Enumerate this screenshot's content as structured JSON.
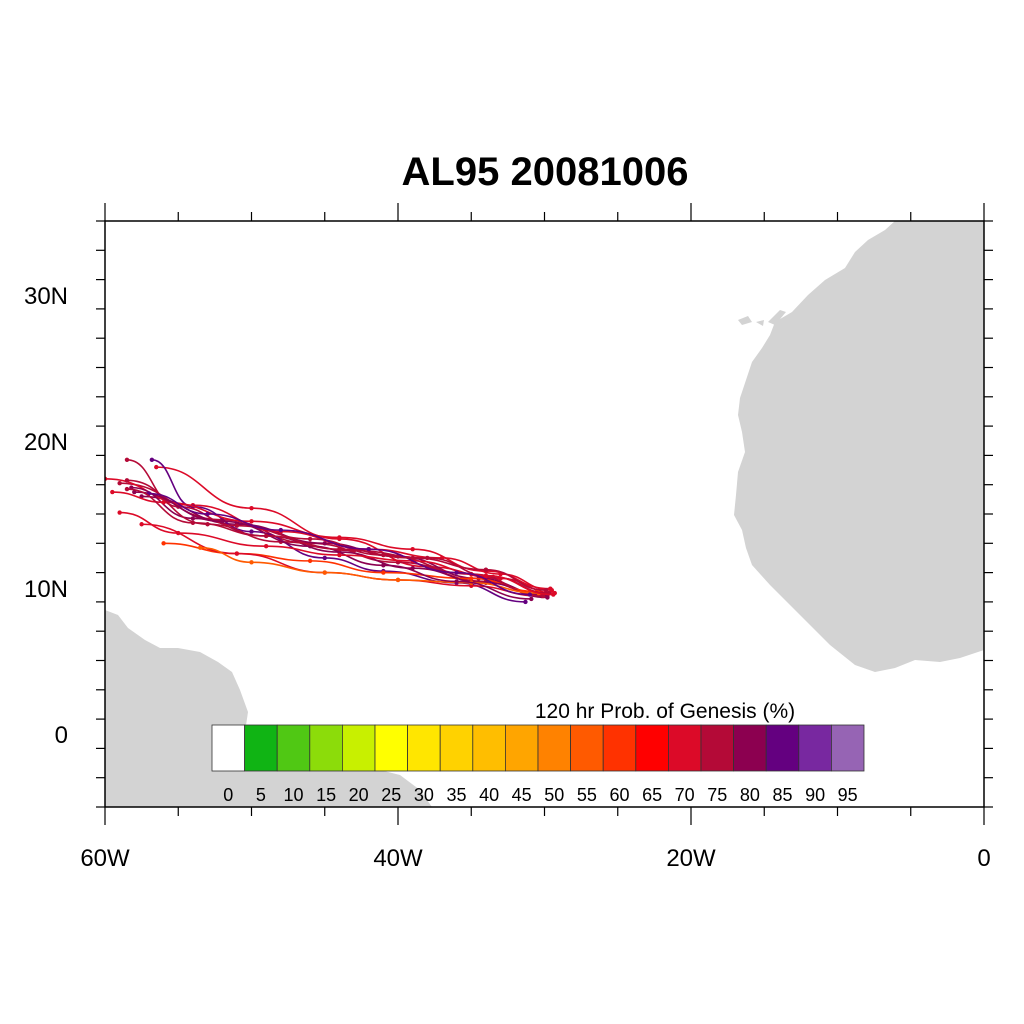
{
  "title": "AL95 20081006",
  "map": {
    "lon_range": [
      -60,
      0
    ],
    "lat_range": [
      -5,
      35
    ],
    "lon_tick_labels": [
      "60W",
      "40W",
      "20W",
      "0"
    ],
    "lat_tick_labels": [
      "30N",
      "20N",
      "10N",
      "0"
    ],
    "land_color": "#d3d3d3",
    "ocean_color": "#ffffff"
  },
  "legend": {
    "title": "120 hr Prob. of Genesis (%)",
    "labels": [
      "0",
      "5",
      "10",
      "15",
      "20",
      "25",
      "30",
      "35",
      "40",
      "45",
      "50",
      "55",
      "60",
      "65",
      "70",
      "75",
      "80",
      "85",
      "90",
      "95"
    ],
    "colors": [
      "#ffffff",
      "#10b414",
      "#50c814",
      "#8cdc0a",
      "#c8f000",
      "#ffff00",
      "#ffe600",
      "#ffd200",
      "#ffbe00",
      "#ffa500",
      "#ff8200",
      "#ff5a00",
      "#ff3200",
      "#ff0000",
      "#dc0a28",
      "#b40a37",
      "#8c0050",
      "#640080",
      "#7828a0",
      "#9664b4"
    ]
  },
  "tracks": [
    {
      "color": "#dc0a28",
      "points": [
        [
          -29.3,
          9.6
        ],
        [
          -33,
          10.6
        ],
        [
          -38,
          11.4
        ],
        [
          -44,
          13.3
        ],
        [
          -50,
          15.4
        ],
        [
          -56.5,
          18.2
        ]
      ]
    },
    {
      "color": "#b40a37",
      "points": [
        [
          -29.8,
          9.4
        ],
        [
          -34,
          10.4
        ],
        [
          -40,
          11.7
        ],
        [
          -46,
          13.0
        ],
        [
          -52,
          14.6
        ],
        [
          -59,
          17.1
        ]
      ]
    },
    {
      "color": "#8c0050",
      "points": [
        [
          -30.0,
          9.5
        ],
        [
          -34.5,
          10.6
        ],
        [
          -40,
          12.1
        ],
        [
          -45,
          13.0
        ],
        [
          -51,
          14.3
        ],
        [
          -57.5,
          16.2
        ]
      ]
    },
    {
      "color": "#dc0a28",
      "points": [
        [
          -29.5,
          9.8
        ],
        [
          -33,
          10.9
        ],
        [
          -37,
          12.0
        ],
        [
          -42,
          12.6
        ],
        [
          -48,
          13.8
        ],
        [
          -54,
          15.6
        ],
        [
          -60,
          17.4
        ]
      ]
    },
    {
      "color": "#640080",
      "points": [
        [
          -31.3,
          9.0
        ],
        [
          -36,
          10.3
        ],
        [
          -41,
          11.1
        ],
        [
          -45,
          12.0
        ],
        [
          -50,
          13.8
        ],
        [
          -54,
          15.5
        ],
        [
          -56.8,
          18.7
        ]
      ]
    },
    {
      "color": "#ff3200",
      "points": [
        [
          -30.5,
          9.7
        ],
        [
          -35,
          10.6
        ],
        [
          -41,
          11.0
        ],
        [
          -46,
          11.8
        ],
        [
          -51,
          12.3
        ],
        [
          -56,
          13.0
        ]
      ]
    },
    {
      "color": "#dc0a28",
      "points": [
        [
          -30.2,
          9.4
        ],
        [
          -35,
          10.1
        ],
        [
          -40,
          10.5
        ],
        [
          -45,
          11.0
        ],
        [
          -51,
          12.3
        ],
        [
          -57.5,
          14.3
        ]
      ]
    },
    {
      "color": "#8c0050",
      "points": [
        [
          -29.8,
          9.3
        ],
        [
          -34,
          10.3
        ],
        [
          -39,
          11.3
        ],
        [
          -44,
          12.4
        ],
        [
          -49,
          13.5
        ],
        [
          -54,
          14.7
        ],
        [
          -58.2,
          16.8
        ]
      ]
    },
    {
      "color": "#b40a37",
      "points": [
        [
          -30.1,
          9.4
        ],
        [
          -35,
          10.9
        ],
        [
          -41,
          12.2
        ],
        [
          -46,
          13.3
        ],
        [
          -51,
          14.2
        ],
        [
          -55,
          15.5
        ],
        [
          -58.5,
          18.7
        ]
      ]
    },
    {
      "color": "#dc0a28",
      "points": [
        [
          -29.6,
          9.9
        ],
        [
          -34,
          11.1
        ],
        [
          -39,
          12.6
        ],
        [
          -44,
          13.4
        ],
        [
          -50,
          14.5
        ],
        [
          -56,
          15.8
        ],
        [
          -59.5,
          16.5
        ]
      ]
    },
    {
      "color": "#ff5a00",
      "points": [
        [
          -30.4,
          9.6
        ],
        [
          -35,
          10.3
        ],
        [
          -40,
          10.5
        ],
        [
          -45,
          11.0
        ],
        [
          -50,
          11.7
        ],
        [
          -53.5,
          12.7
        ]
      ]
    },
    {
      "color": "#b40a37",
      "points": [
        [
          -29.7,
          9.6
        ],
        [
          -33.5,
          10.7
        ],
        [
          -38,
          12.0
        ],
        [
          -43,
          12.5
        ],
        [
          -48,
          13.1
        ],
        [
          -53,
          14.3
        ],
        [
          -58.5,
          17.3
        ]
      ]
    },
    {
      "color": "#8c0050",
      "points": [
        [
          -30.9,
          9.2
        ],
        [
          -36,
          10.4
        ],
        [
          -41,
          11.5
        ],
        [
          -46,
          12.8
        ],
        [
          -52,
          14.5
        ],
        [
          -58,
          16.5
        ]
      ]
    },
    {
      "color": "#dc0a28",
      "points": [
        [
          -29.4,
          9.5
        ],
        [
          -34,
          10.8
        ],
        [
          -39,
          11.8
        ],
        [
          -44,
          12.2
        ],
        [
          -49,
          12.8
        ],
        [
          -55,
          13.7
        ],
        [
          -59,
          15.1
        ]
      ]
    },
    {
      "color": "#640080",
      "points": [
        [
          -31.0,
          9.5
        ],
        [
          -36,
          11.0
        ],
        [
          -42,
          12.6
        ],
        [
          -48,
          13.9
        ],
        [
          -53,
          15.0
        ],
        [
          -57,
          16.4
        ]
      ]
    },
    {
      "color": "#b40a37",
      "points": [
        [
          -29.9,
          9.8
        ],
        [
          -34,
          11.2
        ],
        [
          -39,
          12.0
        ],
        [
          -44,
          12.6
        ],
        [
          -49,
          13.5
        ],
        [
          -54,
          14.4
        ],
        [
          -58.5,
          16.7
        ]
      ]
    }
  ]
}
